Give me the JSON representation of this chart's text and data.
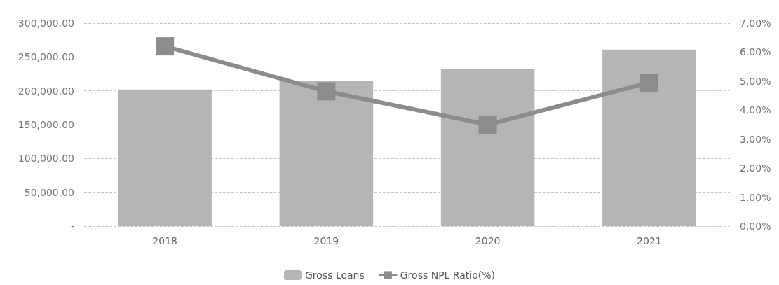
{
  "chart_data": {
    "type": "bar",
    "categories": [
      "2018",
      "2019",
      "2020",
      "2021"
    ],
    "series": [
      {
        "name": "Gross Loans",
        "color": "#b5b5b5",
        "values": [
          202000,
          215000,
          232000,
          261000
        ]
      },
      {
        "name": "Gross NPL Ratio(%)",
        "type": "line",
        "axis": "y2",
        "color": "#8c8c8c",
        "marker": "square",
        "values": [
          6.2,
          4.65,
          3.5,
          4.95
        ]
      }
    ],
    "ylim": [
      0,
      300000
    ],
    "yticks": [
      {
        "value": 0,
        "label": "-"
      },
      {
        "value": 50000,
        "label": "50,000.00"
      },
      {
        "value": 100000,
        "label": "100,000.00"
      },
      {
        "value": 150000,
        "label": "150,000.00"
      },
      {
        "value": 200000,
        "label": "200,000.00"
      },
      {
        "value": 250000,
        "label": "250,000.00"
      },
      {
        "value": 300000,
        "label": "300,000.00"
      }
    ],
    "y2lim": [
      0,
      7
    ],
    "y2ticks": [
      {
        "value": 0,
        "label": "0.00%"
      },
      {
        "value": 1,
        "label": "1.00%"
      },
      {
        "value": 2,
        "label": "2.00%"
      },
      {
        "value": 3,
        "label": "3.00%"
      },
      {
        "value": 4,
        "label": "4.00%"
      },
      {
        "value": 5,
        "label": "5.00%"
      },
      {
        "value": 6,
        "label": "6.00%"
      },
      {
        "value": 7,
        "label": "7.00%"
      }
    ],
    "grid": "y",
    "legend": "bottom"
  }
}
